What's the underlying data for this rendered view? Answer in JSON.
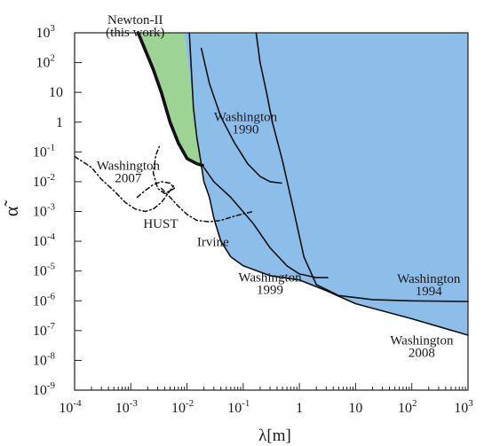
{
  "chart_data": {
    "type": "line",
    "title": "",
    "xlabel": "λ[m]",
    "ylabel": "α̃",
    "xscale": "log",
    "yscale": "log",
    "xlim": [
      0.0001,
      1000
    ],
    "ylim": [
      1e-09,
      1000
    ],
    "grid": false,
    "colors": {
      "excluded": "#8dbde9",
      "newton": "#9dd494",
      "line": "#111111"
    },
    "x_ticks": [
      {
        "value": 0.0001,
        "base": "10",
        "exp": "-4"
      },
      {
        "value": 0.001,
        "base": "10",
        "exp": "-3"
      },
      {
        "value": 0.01,
        "base": "10",
        "exp": "-2"
      },
      {
        "value": 0.1,
        "base": "10",
        "exp": "-1"
      },
      {
        "value": 1,
        "base": "1",
        "exp": ""
      },
      {
        "value": 10,
        "base": "10",
        "exp": ""
      },
      {
        "value": 100,
        "base": "10",
        "exp": "2"
      },
      {
        "value": 1000,
        "base": "10",
        "exp": "3"
      }
    ],
    "y_ticks": [
      {
        "value": 1000,
        "base": "10",
        "exp": "3"
      },
      {
        "value": 100,
        "base": "10",
        "exp": "2"
      },
      {
        "value": 10,
        "base": "10",
        "exp": ""
      },
      {
        "value": 1,
        "base": "1",
        "exp": ""
      },
      {
        "value": 0.1,
        "base": "10",
        "exp": "-1"
      },
      {
        "value": 0.01,
        "base": "10",
        "exp": "-2"
      },
      {
        "value": 0.001,
        "base": "10",
        "exp": "-3"
      },
      {
        "value": 0.0001,
        "base": "10",
        "exp": "-4"
      },
      {
        "value": 1e-05,
        "base": "10",
        "exp": "-5"
      },
      {
        "value": 1e-06,
        "base": "10",
        "exp": "-6"
      },
      {
        "value": 1e-07,
        "base": "10",
        "exp": "-7"
      },
      {
        "value": 1e-08,
        "base": "10",
        "exp": "-8"
      },
      {
        "value": 1e-09,
        "base": "10",
        "exp": "-9"
      }
    ],
    "regions": [
      {
        "name": "excluded-region",
        "points": [
          [
            0.0089,
            1000
          ],
          [
            1000,
            1000
          ],
          [
            1000,
            7e-08
          ],
          [
            100,
            2.5e-07
          ],
          [
            10,
            8e-07
          ],
          [
            3,
            2.2e-06
          ],
          [
            1,
            5e-06
          ],
          [
            0.3,
            7e-06
          ],
          [
            0.1,
            1.5e-05
          ],
          [
            0.06,
            3e-05
          ],
          [
            0.04,
            0.0001
          ],
          [
            0.03,
            0.0006
          ],
          [
            0.025,
            0.003
          ],
          [
            0.02,
            0.01
          ],
          [
            0.017,
            0.07
          ],
          [
            0.015,
            0.3
          ],
          [
            0.013,
            3
          ],
          [
            0.011,
            40
          ],
          [
            0.0089,
            1000
          ]
        ]
      },
      {
        "name": "newton-ii-region",
        "points": [
          [
            0.00135,
            1000
          ],
          [
            0.0089,
            1000
          ],
          [
            0.011,
            40
          ],
          [
            0.013,
            3
          ],
          [
            0.015,
            0.3
          ],
          [
            0.0175,
            0.04
          ],
          [
            0.015,
            0.04
          ],
          [
            0.01,
            0.06
          ],
          [
            0.007,
            0.2
          ],
          [
            0.005,
            1
          ],
          [
            0.0035,
            10
          ],
          [
            0.0025,
            60
          ],
          [
            0.00135,
            1000
          ]
        ]
      }
    ],
    "series": [
      {
        "name": "Newton-II (this work)",
        "style": "thick",
        "points": [
          [
            0.00135,
            1000
          ],
          [
            0.0025,
            60
          ],
          [
            0.0035,
            10
          ],
          [
            0.005,
            1
          ],
          [
            0.007,
            0.2
          ],
          [
            0.01,
            0.06
          ],
          [
            0.015,
            0.04
          ],
          [
            0.019,
            0.035
          ]
        ]
      },
      {
        "name": "Washington 1990",
        "style": "solid",
        "points": [
          [
            0.018,
            300
          ],
          [
            0.025,
            20
          ],
          [
            0.04,
            1.5
          ],
          [
            0.07,
            0.2
          ],
          [
            0.12,
            0.04
          ],
          [
            0.2,
            0.015
          ],
          [
            0.3,
            0.01
          ],
          [
            0.48,
            0.009
          ]
        ]
      },
      {
        "name": "Washington 1994",
        "style": "solid",
        "points": [
          [
            0.17,
            1000
          ],
          [
            0.2,
            100
          ],
          [
            0.26,
            10
          ],
          [
            0.33,
            1
          ],
          [
            0.5,
            0.05
          ],
          [
            0.8,
            0.001
          ],
          [
            1.2,
            3e-05
          ],
          [
            2,
            3.5e-06
          ],
          [
            5,
            1.5e-06
          ],
          [
            20,
            1.1e-06
          ],
          [
            100,
            1e-06
          ],
          [
            1000,
            9.5e-07
          ]
        ]
      },
      {
        "name": "Washington 1999",
        "style": "solid",
        "points": [
          [
            0.02,
            0.03
          ],
          [
            0.03,
            0.01
          ],
          [
            0.06,
            0.003
          ],
          [
            0.15,
            0.0004
          ],
          [
            0.3,
            6e-05
          ],
          [
            0.6,
            1.5e-05
          ],
          [
            1,
            8e-06
          ],
          [
            2,
            6e-06
          ],
          [
            3.2,
            6e-06
          ]
        ]
      },
      {
        "name": "Washington 2008",
        "style": "solid",
        "points": [
          [
            0.011,
            1000
          ],
          [
            0.013,
            3
          ],
          [
            0.015,
            0.3
          ],
          [
            0.017,
            0.07
          ],
          [
            0.02,
            0.01
          ],
          [
            0.025,
            0.003
          ],
          [
            0.03,
            0.0006
          ],
          [
            0.04,
            0.0001
          ],
          [
            0.06,
            3e-05
          ],
          [
            0.1,
            1.5e-05
          ],
          [
            0.3,
            7e-06
          ],
          [
            1,
            5e-06
          ],
          [
            3,
            2.2e-06
          ],
          [
            10,
            8e-07
          ],
          [
            100,
            2.5e-07
          ],
          [
            1000,
            7e-08
          ]
        ]
      },
      {
        "name": "Washington 2007",
        "style": "dashdot",
        "points": [
          [
            0.0001,
            0.07
          ],
          [
            0.0002,
            0.03
          ],
          [
            0.0003,
            0.012
          ],
          [
            0.0005,
            0.005
          ],
          [
            0.0008,
            0.002
          ],
          [
            0.0012,
            0.0012
          ],
          [
            0.0018,
            0.001
          ],
          [
            0.0025,
            0.0012
          ],
          [
            0.0035,
            0.002
          ],
          [
            0.005,
            0.005
          ],
          [
            0.006,
            0.008
          ]
        ]
      },
      {
        "name": "HUST",
        "style": "dashdot",
        "points": [
          [
            0.0013,
            0.003
          ],
          [
            0.0018,
            0.005
          ],
          [
            0.0025,
            0.008
          ],
          [
            0.0035,
            0.01
          ],
          [
            0.005,
            0.009
          ],
          [
            0.006,
            0.006
          ],
          [
            0.004,
            0.004
          ],
          [
            0.003,
            0.006
          ],
          [
            0.0025,
            0.02
          ],
          [
            0.0028,
            0.08
          ],
          [
            0.0032,
            0.15
          ]
        ]
      },
      {
        "name": "Irvine",
        "style": "dashdot",
        "points": [
          [
            0.0035,
            0.006
          ],
          [
            0.005,
            0.003
          ],
          [
            0.007,
            0.0015
          ],
          [
            0.01,
            0.0008
          ],
          [
            0.015,
            0.0005
          ],
          [
            0.025,
            0.00045
          ],
          [
            0.04,
            0.0005
          ],
          [
            0.07,
            0.0007
          ],
          [
            0.15,
            0.001
          ]
        ]
      }
    ],
    "annotations": [
      {
        "name": "newton",
        "lines": [
          "Newton-II",
          "(this work)"
        ],
        "x": 0.0012,
        "y": 2000,
        "anchor": "middle",
        "size": 15
      },
      {
        "name": "w1990",
        "lines": [
          "Washington",
          "1990"
        ],
        "x": 0.11,
        "y": 1.1,
        "anchor": "middle",
        "size": 15
      },
      {
        "name": "w2007",
        "lines": [
          "Washington",
          "2007"
        ],
        "x": 0.0009,
        "y": 0.025,
        "anchor": "middle",
        "size": 15
      },
      {
        "name": "hust",
        "lines": [
          "HUST"
        ],
        "x": 0.0034,
        "y": 0.00028,
        "anchor": "middle",
        "size": 15
      },
      {
        "name": "irvine",
        "lines": [
          "Irvine"
        ],
        "x": 0.029,
        "y": 7e-05,
        "anchor": "middle",
        "size": 15
      },
      {
        "name": "w1999",
        "lines": [
          "Washington",
          "1999"
        ],
        "x": 0.3,
        "y": 4.5e-06,
        "anchor": "middle",
        "size": 15
      },
      {
        "name": "w1994",
        "lines": [
          "Washington",
          "1994"
        ],
        "x": 200,
        "y": 4e-06,
        "anchor": "middle",
        "size": 15
      },
      {
        "name": "w2008",
        "lines": [
          "Washington",
          "2008"
        ],
        "x": 150,
        "y": 3.4e-08,
        "anchor": "middle",
        "size": 15
      }
    ]
  }
}
